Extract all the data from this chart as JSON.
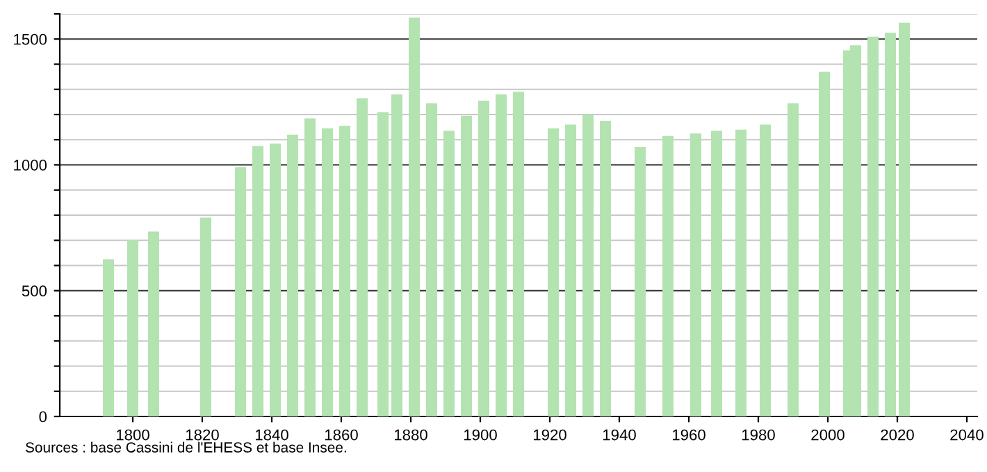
{
  "chart_data": {
    "type": "bar",
    "x": [
      1793,
      1800,
      1806,
      1821,
      1831,
      1836,
      1841,
      1846,
      1851,
      1856,
      1861,
      1866,
      1872,
      1876,
      1881,
      1886,
      1891,
      1896,
      1901,
      1906,
      1911,
      1921,
      1926,
      1931,
      1936,
      1946,
      1954,
      1962,
      1968,
      1975,
      1982,
      1990,
      1999,
      2006,
      2008,
      2013,
      2018,
      2022
    ],
    "values": [
      625,
      700,
      735,
      790,
      990,
      1075,
      1085,
      1120,
      1185,
      1145,
      1155,
      1265,
      1210,
      1280,
      1585,
      1245,
      1135,
      1195,
      1255,
      1280,
      1290,
      1145,
      1160,
      1200,
      1175,
      1070,
      1115,
      1125,
      1135,
      1140,
      1160,
      1245,
      1370,
      1455,
      1475,
      1510,
      1525,
      1565
    ],
    "color": "#b3e3b0",
    "xlim": [
      1779,
      2043
    ],
    "xticks": [
      1800,
      1820,
      1840,
      1860,
      1880,
      1900,
      1920,
      1940,
      1960,
      1980,
      2000,
      2020,
      2040
    ],
    "ylim": [
      0,
      1600
    ],
    "yticks": [
      0,
      {
        "value": 100,
        "label": null
      },
      {
        "value": 200,
        "label": null
      },
      {
        "value": 300,
        "label": null
      },
      {
        "value": 400,
        "label": null
      },
      500,
      {
        "value": 600,
        "label": null
      },
      {
        "value": 700,
        "label": null
      },
      {
        "value": 800,
        "label": null
      },
      {
        "value": 900,
        "label": null
      },
      1000,
      {
        "value": 1100,
        "label": null
      },
      {
        "value": 1200,
        "label": null
      },
      {
        "value": 1300,
        "label": null
      },
      {
        "value": 1400,
        "label": null
      },
      1500,
      {
        "value": 1600,
        "label": null
      }
    ],
    "grid": "y",
    "annotations": [
      "Sources : base Cassini de l'EHESS et base Insee."
    ]
  }
}
